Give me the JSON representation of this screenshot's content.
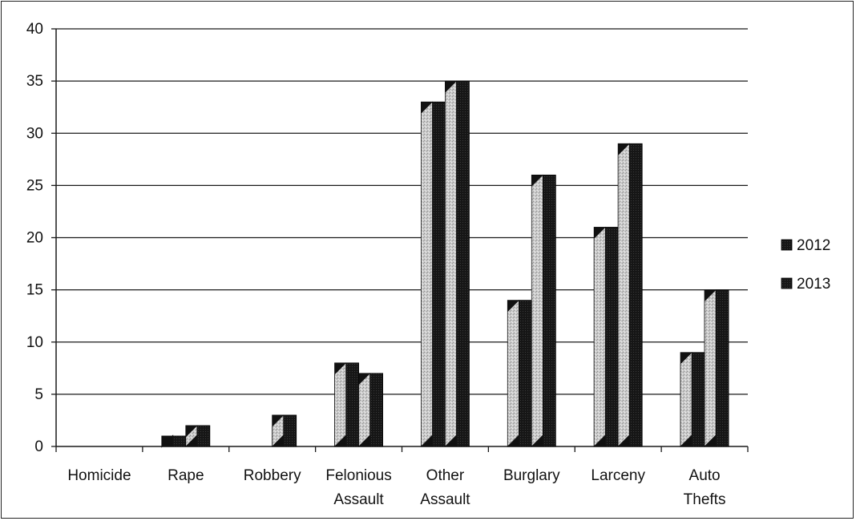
{
  "chart_data": {
    "type": "bar",
    "categories": [
      [
        "Homicide"
      ],
      [
        "Rape"
      ],
      [
        "Robbery"
      ],
      [
        "Felonious",
        "Assault"
      ],
      [
        "Other",
        "Assault"
      ],
      [
        "Burglary"
      ],
      [
        "Larceny"
      ],
      [
        "Auto",
        "Thefts"
      ]
    ],
    "series": [
      {
        "name": "2012",
        "values": [
          0,
          1,
          0,
          8,
          33,
          14,
          21,
          9
        ],
        "color": "#1a1a1a"
      },
      {
        "name": "2013",
        "values": [
          0,
          2,
          3,
          7,
          35,
          26,
          29,
          15
        ],
        "color": "#111111"
      }
    ],
    "ylim": [
      0,
      40
    ],
    "yticks": [
      0,
      5,
      10,
      15,
      20,
      25,
      30,
      35,
      40
    ],
    "grid": true,
    "legend_position": "right",
    "title": "",
    "xlabel": "",
    "ylabel": ""
  }
}
